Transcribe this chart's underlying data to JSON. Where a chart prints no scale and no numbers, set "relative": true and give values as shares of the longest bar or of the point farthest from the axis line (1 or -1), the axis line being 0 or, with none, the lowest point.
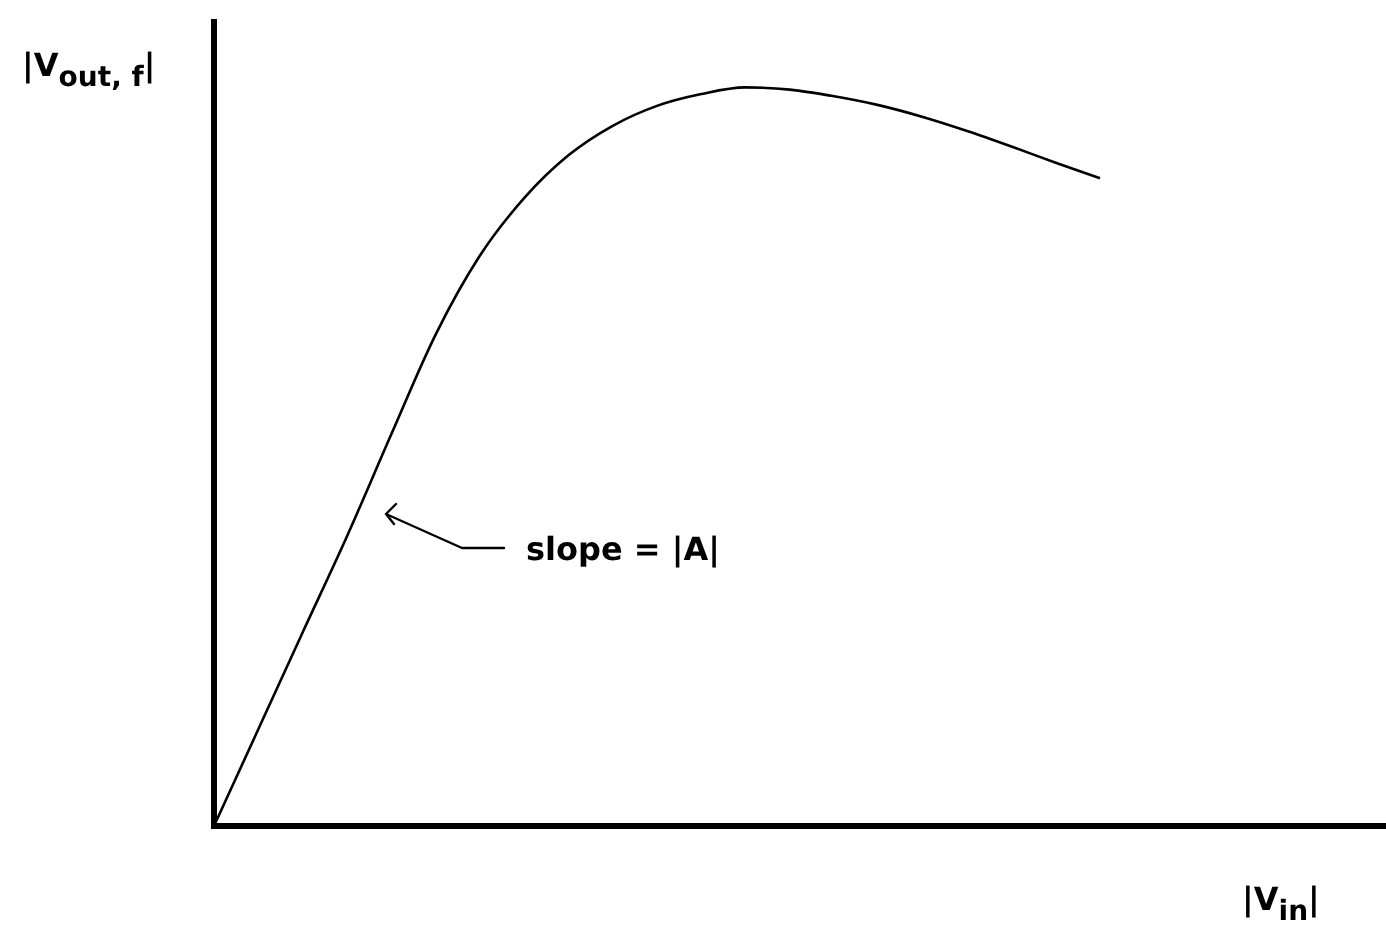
{
  "chart_data": {
    "type": "line",
    "relative": true,
    "ylabel": "|V$_{out, f}$|",
    "xlabel": "|V$_{in}$|",
    "categories": [
      null,
      null,
      null,
      null,
      null,
      null,
      null,
      null,
      null,
      null,
      null,
      null,
      null,
      null,
      null,
      null,
      null,
      null,
      null,
      null,
      null
    ],
    "color": "#000000",
    "values": [
      0,
      0.131,
      0.262,
      0.392,
      0.53,
      0.665,
      0.772,
      0.85,
      0.908,
      0.948,
      0.975,
      0.991,
      1,
      0.997,
      0.988,
      0.976,
      0.96,
      0.941,
      0.92,
      0.898,
      0.877
    ],
    "annotations": [
      "slope = |A|"
    ]
  }
}
